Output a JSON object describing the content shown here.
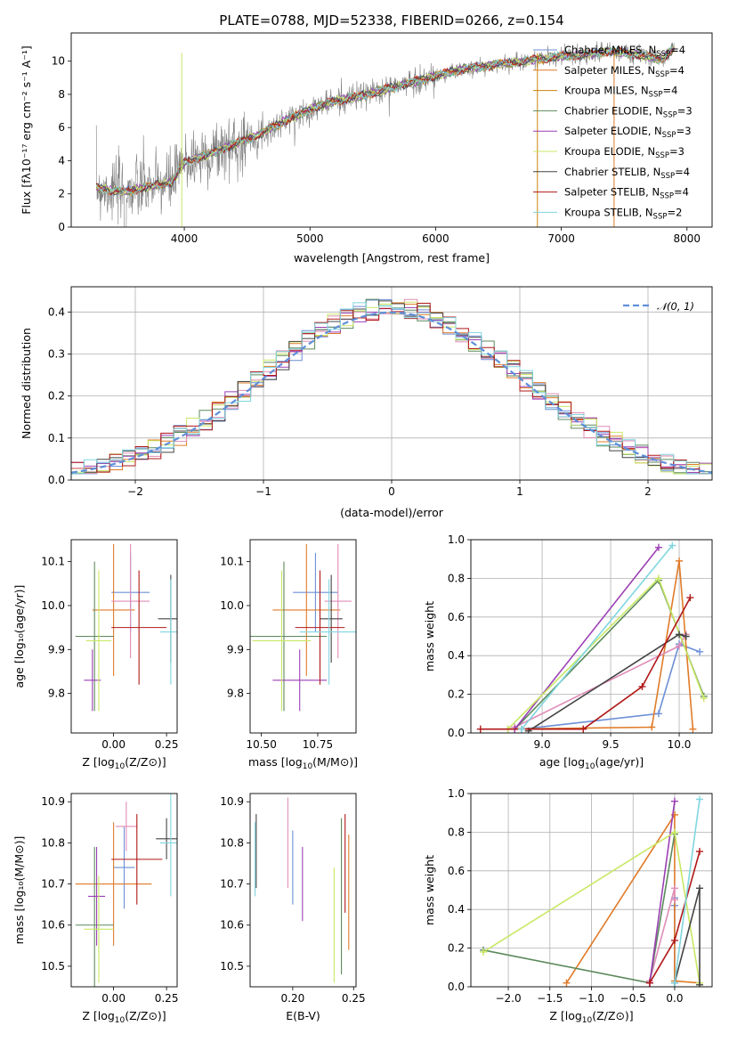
{
  "colors": {
    "Chabrier MILES": "#6b8fd6",
    "Salpeter MILES": "#e07b29",
    "Kroupa MILES": "#c8860a",
    "Chabrier ELODIE": "#5c8a5c",
    "Salpeter ELODIE": "#9b3fb5",
    "Kroupa ELODIE": "#c9e865",
    "Chabrier STELIB": "#444444",
    "Salpeter STELIB": "#b01818",
    "Kroupa STELIB": "#7fd6df",
    "pink": "#e08cb8",
    "data": "#808080",
    "gaussian": "#5f8fd9"
  },
  "chart_data": [
    {
      "id": "spectrum",
      "type": "line",
      "title": "PLATE=0788, MJD=52338, FIBERID=0266, z=0.154",
      "xlabel": "wavelength [Angstrom, rest frame]",
      "ylabel": "Flux [fλ10⁻¹⁷ erg cm⁻² s⁻¹ A⁻¹]",
      "xlim": [
        3100,
        8200
      ],
      "ylim": [
        0,
        11.7
      ],
      "xticks": [
        4000,
        5000,
        6000,
        7000,
        8000
      ],
      "yticks": [
        0,
        2,
        4,
        6,
        8,
        10
      ],
      "grid": false,
      "legend_position": "top-right",
      "continuum": {
        "x": [
          3300,
          3500,
          3700,
          3900,
          4000,
          4200,
          4400,
          4600,
          4800,
          5000,
          5200,
          5400,
          5600,
          5800,
          6000,
          6200,
          6400,
          6600,
          6800,
          7000,
          7200,
          7400,
          7600,
          7800,
          7900
        ],
        "y": [
          2.4,
          2.1,
          2.4,
          2.7,
          3.9,
          4.4,
          5.0,
          5.6,
          6.4,
          7.1,
          7.6,
          7.9,
          8.3,
          8.7,
          9.1,
          9.5,
          9.7,
          9.9,
          10.1,
          10.3,
          10.4,
          10.6,
          10.4,
          10.1,
          10.8
        ]
      },
      "series": [
        {
          "name": "Chabrier MILES, N_SSP=4",
          "label_main": "Chabrier MILES, N",
          "label_sub": "SSP",
          "label_tail": "=4",
          "color": "#6b8fd6"
        },
        {
          "name": "Salpeter MILES, N_SSP=4",
          "label_main": "Salpeter MILES, N",
          "label_sub": "SSP",
          "label_tail": "=4",
          "color": "#e07b29"
        },
        {
          "name": "Kroupa MILES, N_SSP=4",
          "label_main": "Kroupa MILES, N",
          "label_sub": "SSP",
          "label_tail": "=4",
          "color": "#c8860a"
        },
        {
          "name": "Chabrier ELODIE, N_SSP=3",
          "label_main": "Chabrier ELODIE, N",
          "label_sub": "SSP",
          "label_tail": "=3",
          "color": "#5c8a5c"
        },
        {
          "name": "Salpeter ELODIE, N_SSP=3",
          "label_main": "Salpeter ELODIE, N",
          "label_sub": "SSP",
          "label_tail": "=3",
          "color": "#9b3fb5"
        },
        {
          "name": "Kroupa ELODIE, N_SSP=3",
          "label_main": "Kroupa ELODIE, N",
          "label_sub": "SSP",
          "label_tail": "=3",
          "color": "#c9e865"
        },
        {
          "name": "Chabrier STELIB, N_SSP=4",
          "label_main": "Chabrier STELIB, N",
          "label_sub": "SSP",
          "label_tail": "=4",
          "color": "#444444"
        },
        {
          "name": "Salpeter STELIB, N_SSP=4",
          "label_main": "Salpeter STELIB, N",
          "label_sub": "SSP",
          "label_tail": "=4",
          "color": "#b01818"
        },
        {
          "name": "Kroupa STELIB, N_SSP=2",
          "label_main": "Kroupa STELIB, N",
          "label_sub": "SSP",
          "label_tail": "=2",
          "color": "#7fd6df"
        }
      ]
    },
    {
      "id": "residuals",
      "type": "line",
      "xlabel": "(data-model)/error",
      "ylabel": "Normed distribution",
      "xlim": [
        -2.5,
        2.5
      ],
      "ylim": [
        0,
        0.46
      ],
      "xticks": [
        -2,
        -1,
        0,
        1,
        2
      ],
      "yticks": [
        0.0,
        0.1,
        0.2,
        0.3,
        0.4
      ],
      "grid": true,
      "legend_position": "top-right",
      "gaussian_label": "𝒩(0, 1)",
      "bin_width": 0.1
    },
    {
      "id": "Z-age",
      "type": "scatter",
      "xlabel_main": "Z [log",
      "xlabel_sub": "10",
      "xlabel_tail": "(Z/Z⊙)]",
      "ylabel": "age  [log₁₀(age/yr)]",
      "xlim": [
        -0.2,
        0.3
      ],
      "ylim": [
        9.71,
        10.15
      ],
      "xticks": [
        0.0,
        0.25
      ],
      "yticks": [
        9.8,
        9.9,
        10.0,
        10.1
      ],
      "grid": false,
      "points": [
        {
          "x": 0.08,
          "xe": 0.09,
          "y": 10.03,
          "ye": 0.09,
          "color": "#6b8fd6"
        },
        {
          "x": 0.0,
          "xe": 0.1,
          "y": 9.99,
          "ye": 0.15,
          "color": "#e07b29"
        },
        {
          "x": 0.08,
          "xe": 0.09,
          "y": 10.01,
          "ye": 0.13,
          "color": "#e08cb8"
        },
        {
          "x": -0.09,
          "xe": 0.09,
          "y": 9.93,
          "ye": 0.17,
          "color": "#5c8a5c"
        },
        {
          "x": -0.1,
          "xe": 0.04,
          "y": 9.83,
          "ye": 0.07,
          "color": "#9b3fb5"
        },
        {
          "x": -0.07,
          "xe": 0.06,
          "y": 9.92,
          "ye": 0.16,
          "color": "#c9e865"
        },
        {
          "x": 0.27,
          "xe": 0.06,
          "y": 9.97,
          "ye": 0.1,
          "color": "#444444"
        },
        {
          "x": 0.12,
          "xe": 0.13,
          "y": 9.95,
          "ye": 0.13,
          "color": "#b01818"
        },
        {
          "x": 0.27,
          "xe": 0.05,
          "y": 9.94,
          "ye": 0.12,
          "color": "#7fd6df"
        }
      ]
    },
    {
      "id": "mass-age",
      "type": "scatter",
      "xlabel_main": "mass [log",
      "xlabel_sub": "10",
      "xlabel_tail": "(M/M⊙)]",
      "ylabel": "",
      "xlim": [
        10.45,
        10.92
      ],
      "ylim": [
        9.71,
        10.15
      ],
      "xticks": [
        10.5,
        10.75
      ],
      "yticks": [
        9.8,
        9.9,
        10.0,
        10.1
      ],
      "grid": false,
      "points": [
        {
          "x": 10.74,
          "xe": 0.1,
          "y": 10.03,
          "ye": 0.09,
          "color": "#6b8fd6"
        },
        {
          "x": 10.7,
          "xe": 0.15,
          "y": 9.99,
          "ye": 0.15,
          "color": "#e07b29"
        },
        {
          "x": 10.84,
          "xe": 0.06,
          "y": 10.01,
          "ye": 0.13,
          "color": "#e08cb8"
        },
        {
          "x": 10.6,
          "xe": 0.19,
          "y": 9.93,
          "ye": 0.17,
          "color": "#5c8a5c"
        },
        {
          "x": 10.67,
          "xe": 0.12,
          "y": 9.83,
          "ye": 0.07,
          "color": "#9b3fb5"
        },
        {
          "x": 10.59,
          "xe": 0.13,
          "y": 9.92,
          "ye": 0.16,
          "color": "#c9e865"
        },
        {
          "x": 10.81,
          "xe": 0.05,
          "y": 9.97,
          "ye": 0.1,
          "color": "#444444"
        },
        {
          "x": 10.76,
          "xe": 0.11,
          "y": 9.95,
          "ye": 0.13,
          "color": "#b01818"
        },
        {
          "x": 10.8,
          "xe": 0.13,
          "y": 9.94,
          "ye": 0.12,
          "color": "#7fd6df"
        }
      ]
    },
    {
      "id": "age-weight",
      "type": "line",
      "xlabel_main": "age  [log",
      "xlabel_sub": "10",
      "xlabel_tail": "(age/yr)]",
      "ylabel": "mass weight",
      "xlim": [
        8.48,
        10.24
      ],
      "ylim": [
        0,
        1.0
      ],
      "xticks": [
        9.0,
        9.5,
        10.0
      ],
      "yticks": [
        0.0,
        0.2,
        0.4,
        0.6,
        0.8,
        1.0
      ],
      "grid": true,
      "series": [
        {
          "color": "#6b8fd6",
          "x": [
            8.85,
            9.85,
            10.0,
            10.15
          ],
          "y": [
            0.02,
            0.1,
            0.46,
            0.42
          ]
        },
        {
          "color": "#e07b29",
          "x": [
            8.75,
            9.8,
            10.0,
            10.1
          ],
          "y": [
            0.02,
            0.03,
            0.89,
            0.02
          ]
        },
        {
          "color": "#e08cb8",
          "x": [
            8.8,
            10.0,
            10.05
          ],
          "y": [
            0.03,
            0.45,
            0.51
          ]
        },
        {
          "color": "#5c8a5c",
          "x": [
            8.8,
            9.85,
            10.18
          ],
          "y": [
            0.02,
            0.79,
            0.19
          ]
        },
        {
          "color": "#9b3fb5",
          "x": [
            8.8,
            9.85
          ],
          "y": [
            0.02,
            0.96
          ]
        },
        {
          "color": "#c9e865",
          "x": [
            8.75,
            9.85,
            10.18
          ],
          "y": [
            0.02,
            0.8,
            0.18
          ]
        },
        {
          "color": "#444444",
          "x": [
            8.9,
            10.0,
            10.05
          ],
          "y": [
            0.01,
            0.51,
            0.5
          ]
        },
        {
          "color": "#b01818",
          "x": [
            8.55,
            9.3,
            9.73,
            10.08
          ],
          "y": [
            0.02,
            0.02,
            0.24,
            0.7
          ]
        },
        {
          "color": "#7fd6df",
          "x": [
            8.85,
            9.95
          ],
          "y": [
            0.02,
            0.97
          ]
        }
      ]
    },
    {
      "id": "Z-mass",
      "type": "scatter",
      "xlabel_main": "Z [log",
      "xlabel_sub": "10",
      "xlabel_tail": "(Z/Z⊙)]",
      "ylabel": "mass [log₁₀(M/M⊙)]",
      "xlim": [
        -0.2,
        0.3
      ],
      "ylim": [
        10.45,
        10.92
      ],
      "xticks": [
        0.0,
        0.25
      ],
      "yticks": [
        10.5,
        10.6,
        10.7,
        10.8,
        10.9
      ],
      "grid": false,
      "points": [
        {
          "x": 0.05,
          "xe": 0.05,
          "y": 10.74,
          "ye": 0.1,
          "color": "#6b8fd6"
        },
        {
          "x": 0.0,
          "xe": 0.18,
          "y": 10.7,
          "ye": 0.15,
          "color": "#e07b29"
        },
        {
          "x": 0.06,
          "xe": 0.05,
          "y": 10.84,
          "ye": 0.06,
          "color": "#e08cb8"
        },
        {
          "x": -0.09,
          "xe": 0.09,
          "y": 10.6,
          "ye": 0.19,
          "color": "#5c8a5c"
        },
        {
          "x": -0.08,
          "xe": 0.04,
          "y": 10.67,
          "ye": 0.12,
          "color": "#9b3fb5"
        },
        {
          "x": -0.07,
          "xe": 0.07,
          "y": 10.59,
          "ye": 0.13,
          "color": "#c9e865"
        },
        {
          "x": 0.25,
          "xe": 0.05,
          "y": 10.81,
          "ye": 0.05,
          "color": "#444444"
        },
        {
          "x": 0.11,
          "xe": 0.12,
          "y": 10.76,
          "ye": 0.11,
          "color": "#b01818"
        },
        {
          "x": 0.27,
          "xe": 0.05,
          "y": 10.8,
          "ye": 0.13,
          "color": "#7fd6df"
        }
      ]
    },
    {
      "id": "ebv-mass",
      "type": "scatter",
      "xlabel": "E(B-V)",
      "ylabel": "",
      "xlim": [
        0.165,
        0.252
      ],
      "ylim": [
        10.45,
        10.92
      ],
      "xticks": [
        0.2,
        0.25
      ],
      "yticks": [
        10.5,
        10.6,
        10.7,
        10.8,
        10.9
      ],
      "grid": false,
      "points": [
        {
          "x": 0.2,
          "xe": 0,
          "y": 10.74,
          "ye": 0.09,
          "color": "#6b8fd6"
        },
        {
          "x": 0.246,
          "xe": 0,
          "y": 10.68,
          "ye": 0.14,
          "color": "#e07b29"
        },
        {
          "x": 0.196,
          "xe": 0,
          "y": 10.8,
          "ye": 0.11,
          "color": "#e08cb8"
        },
        {
          "x": 0.24,
          "xe": 0,
          "y": 10.67,
          "ye": 0.19,
          "color": "#5c8a5c"
        },
        {
          "x": 0.208,
          "xe": 0,
          "y": 10.7,
          "ye": 0.09,
          "color": "#9b3fb5"
        },
        {
          "x": 0.234,
          "xe": 0,
          "y": 10.6,
          "ye": 0.14,
          "color": "#c9e865"
        },
        {
          "x": 0.17,
          "xe": 0,
          "y": 10.78,
          "ye": 0.09,
          "color": "#444444"
        },
        {
          "x": 0.243,
          "xe": 0,
          "y": 10.75,
          "ye": 0.12,
          "color": "#b01818"
        },
        {
          "x": 0.169,
          "xe": 0,
          "y": 10.76,
          "ye": 0.09,
          "color": "#7fd6df"
        }
      ]
    },
    {
      "id": "Z-weight",
      "type": "line",
      "xlabel_main": "Z [log",
      "xlabel_sub": "10",
      "xlabel_tail": "(Z/Z⊙)]",
      "ylabel": "mass weight",
      "xlim": [
        -2.45,
        0.45
      ],
      "ylim": [
        0,
        1.0
      ],
      "xticks": [
        -2.0,
        -1.5,
        -1.0,
        -0.5,
        0.0
      ],
      "yticks": [
        0.0,
        0.2,
        0.4,
        0.6,
        0.8,
        1.0
      ],
      "grid": true,
      "series": [
        {
          "color": "#6b8fd6",
          "x": [
            0.0,
            0.0,
            0.0
          ],
          "y": [
            0.02,
            0.46,
            0.42
          ]
        },
        {
          "color": "#e07b29",
          "x": [
            -1.3,
            0.0,
            0.0,
            0.3
          ],
          "y": [
            0.02,
            0.89,
            0.03,
            0.02
          ]
        },
        {
          "color": "#e08cb8",
          "x": [
            -0.3,
            0.0,
            0.0
          ],
          "y": [
            0.03,
            0.51,
            0.45
          ]
        },
        {
          "color": "#5c8a5c",
          "x": [
            -2.3,
            -0.3,
            0.0
          ],
          "y": [
            0.19,
            0.02,
            0.79
          ]
        },
        {
          "color": "#9b3fb5",
          "x": [
            -0.3,
            0.0
          ],
          "y": [
            0.02,
            0.96
          ]
        },
        {
          "color": "#c9e865",
          "x": [
            -2.3,
            0.0,
            0.3
          ],
          "y": [
            0.18,
            0.8,
            0.02
          ]
        },
        {
          "color": "#444444",
          "x": [
            0.0,
            0.3,
            0.3
          ],
          "y": [
            0.02,
            0.51,
            0.01
          ]
        },
        {
          "color": "#b01818",
          "x": [
            -0.3,
            0.0,
            0.3
          ],
          "y": [
            0.02,
            0.24,
            0.7
          ]
        },
        {
          "color": "#7fd6df",
          "x": [
            0.0,
            0.3
          ],
          "y": [
            0.02,
            0.97
          ]
        }
      ]
    }
  ]
}
